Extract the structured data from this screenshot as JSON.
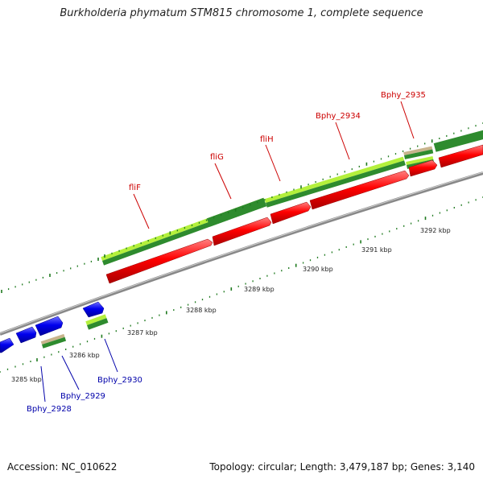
{
  "title": "Burkholderia phymatum STM815 chromosome 1, complete sequence",
  "footer": {
    "accession": "Accession: NC_010622",
    "summary": "Topology: circular; Length: 3,479,187 bp; Genes: 3,140"
  },
  "ticks": [
    "3285 kbp",
    "3286 kbp",
    "3287 kbp",
    "3288 kbp",
    "3289 kbp",
    "3290 kbp",
    "3291 kbp",
    "3292 kbp"
  ],
  "labels_top": [
    "fliF",
    "fliG",
    "fliH",
    "Bphy_2934",
    "Bphy_2935"
  ],
  "labels_bottom": [
    "Bphy_2928",
    "Bphy_2929",
    "Bphy_2930"
  ],
  "colors": {
    "plus_gene": "#ff0000",
    "minus_gene": "#0000ee",
    "plus_label": "#cc0000",
    "minus_label": "#0000aa",
    "cds_dark": "#2e8b2e",
    "cds_light": "#b4f03c",
    "other_feature": "#c8b48c",
    "backbone": "#888888",
    "tick": "#1f7a1f"
  }
}
